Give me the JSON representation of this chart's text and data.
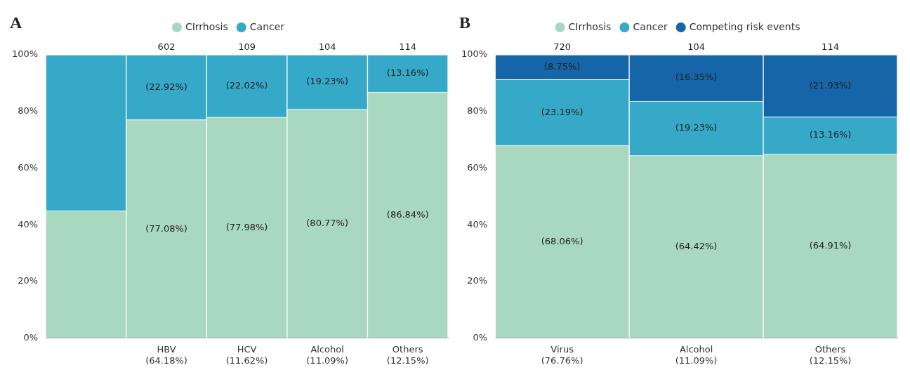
{
  "chart_data": [
    {
      "type": "bar",
      "title": "A",
      "stacked": true,
      "categories": [
        null,
        "HBV\n(64.18%)",
        "HCV\n(11.62%)",
        "Alcohol\n(11.09%)",
        "Others\n(12.15%)"
      ],
      "series": [
        {
          "name": "CIrrhosis",
          "color": "#a8d8c0",
          "values": [
            45,
            77.08,
            77.98,
            80.77,
            86.84
          ],
          "value_labels": [
            null,
            "(77.08%)",
            "(77.98%)",
            "(80.77%)",
            "(86.84%)"
          ]
        },
        {
          "name": "Cancer",
          "color": "#36a9c9",
          "values": [
            55,
            22.92,
            22.02,
            19.23,
            13.16
          ],
          "value_labels": [
            null,
            "(22.92%)",
            "(22.02%)",
            "(19.23%)",
            "(13.16%)"
          ]
        }
      ],
      "ylim": [
        0,
        100
      ],
      "yticks": [
        {
          "value": 0,
          "label": "0%"
        },
        {
          "value": 20,
          "label": "20%"
        },
        {
          "value": 40,
          "label": "40%"
        },
        {
          "value": 60,
          "label": "60%"
        },
        {
          "value": 80,
          "label": "80%"
        },
        {
          "value": 100,
          "label": "100%"
        }
      ],
      "legend": "top",
      "grid": false,
      "annotations": [
        {
          "text": "602",
          "x": "HBV\n(64.18%)",
          "y": 100
        },
        {
          "text": "109",
          "x": "HCV\n(11.62%)",
          "y": 100
        },
        {
          "text": "104",
          "x": "Alcohol\n(11.09%)",
          "y": 100
        },
        {
          "text": "114",
          "x": "Others\n(12.15%)",
          "y": 100
        }
      ]
    },
    {
      "type": "bar",
      "title": "B",
      "stacked": true,
      "categories": [
        "Virus\n(76.76%)",
        "Alcohol\n(11.09%)",
        "Others\n(12.15%)"
      ],
      "series": [
        {
          "name": "CIrrhosis",
          "color": "#a8d8c0",
          "values": [
            68.06,
            64.42,
            64.91
          ],
          "value_labels": [
            "(68.06%)",
            "(64.42%)",
            "(64.91%)"
          ]
        },
        {
          "name": "Cancer",
          "color": "#36a9c9",
          "values": [
            23.19,
            19.23,
            13.16
          ],
          "value_labels": [
            "(23.19%)",
            "(19.23%)",
            "(13.16%)"
          ]
        },
        {
          "name": "Competing risk events",
          "color": "#1565a8",
          "values": [
            8.75,
            16.35,
            21.93
          ],
          "value_labels": [
            "(8.75%)",
            "(16.35%)",
            "(21.93%)"
          ]
        }
      ],
      "ylim": [
        0,
        100
      ],
      "yticks": [
        {
          "value": 0,
          "label": "0%"
        },
        {
          "value": 20,
          "label": "20%"
        },
        {
          "value": 40,
          "label": "40%"
        },
        {
          "value": 60,
          "label": "60%"
        },
        {
          "value": 80,
          "label": "80%"
        },
        {
          "value": 100,
          "label": "100%"
        }
      ],
      "legend": "top",
      "grid": false,
      "annotations": [
        {
          "text": "720",
          "x": "Virus\n(76.76%)",
          "y": 100
        },
        {
          "text": "104",
          "x": "Alcohol\n(11.09%)",
          "y": 100
        },
        {
          "text": "114",
          "x": "Others\n(12.15%)",
          "y": 100
        }
      ]
    }
  ]
}
